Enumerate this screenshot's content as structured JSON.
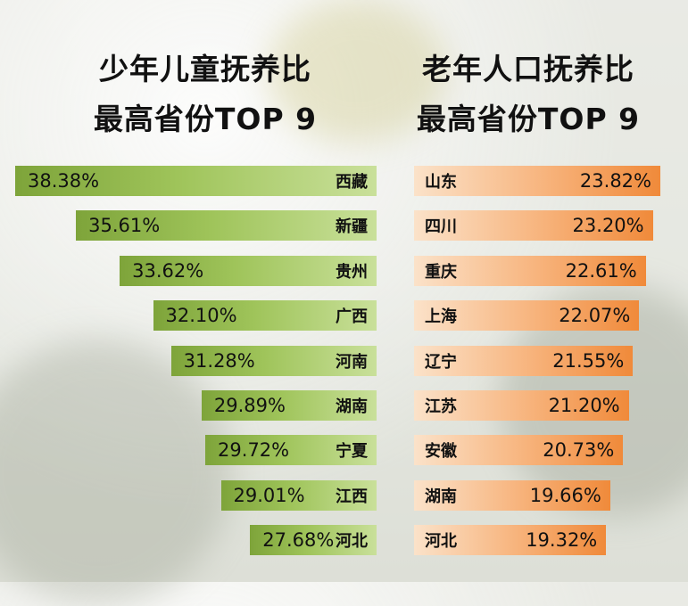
{
  "chart_data": [
    {
      "type": "bar",
      "title": "少年儿童抚养比\n最高省份TOP 9",
      "categories": [
        "西藏",
        "新疆",
        "贵州",
        "广西",
        "河南",
        "湖南",
        "宁夏",
        "江西",
        "河北"
      ],
      "values": [
        38.38,
        35.61,
        33.62,
        32.1,
        31.28,
        29.89,
        29.72,
        29.01,
        27.68
      ],
      "labels": [
        "38.38%",
        "35.61%",
        "33.62%",
        "32.10%",
        "31.28%",
        "29.89%",
        "29.72%",
        "29.01%",
        "27.68%"
      ],
      "color": "#8db24a"
    },
    {
      "type": "bar",
      "title": "老年人口抚养比\n最高省份TOP 9",
      "categories": [
        "山东",
        "四川",
        "重庆",
        "上海",
        "辽宁",
        "江苏",
        "安徽",
        "湖南",
        "河北"
      ],
      "values": [
        23.82,
        23.2,
        22.61,
        22.07,
        21.55,
        21.2,
        20.73,
        19.66,
        19.32
      ],
      "labels": [
        "23.82%",
        "23.20%",
        "22.61%",
        "22.07%",
        "21.55%",
        "21.20%",
        "20.73%",
        "19.66%",
        "19.32%"
      ],
      "color": "#f39a4e"
    }
  ]
}
